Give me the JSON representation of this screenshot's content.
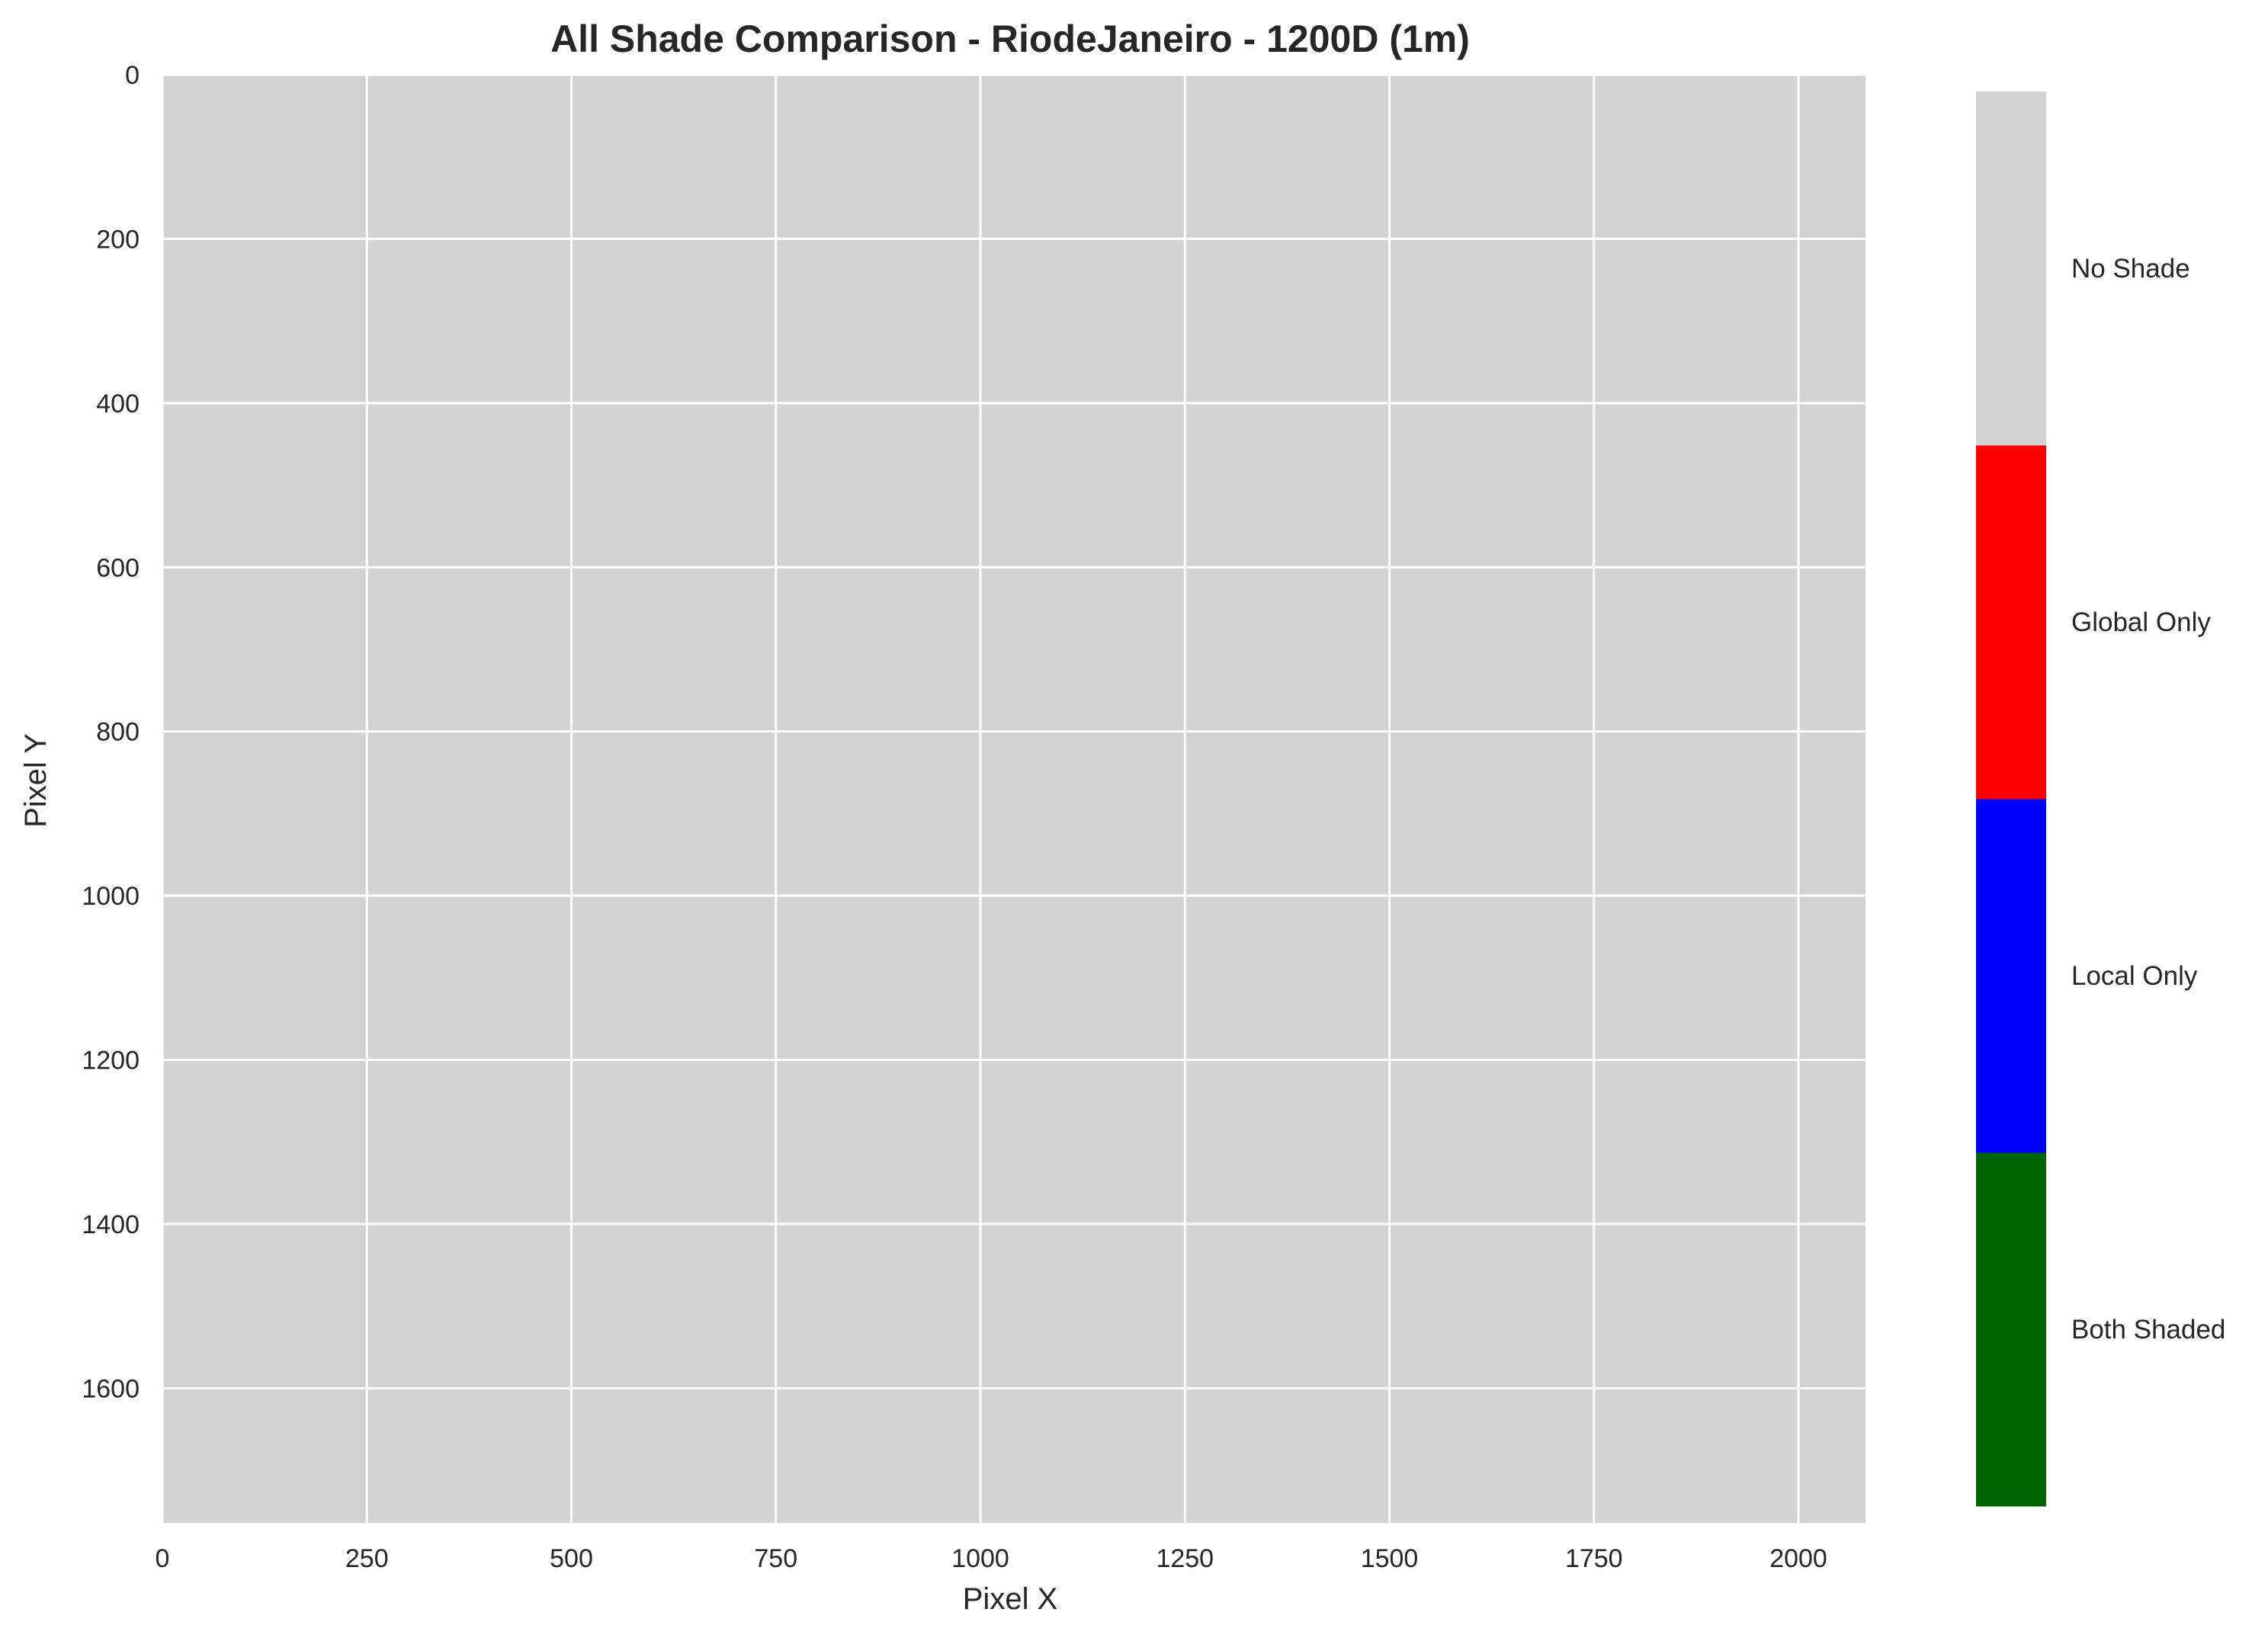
{
  "chart_data": {
    "type": "heatmap",
    "title": "All Shade Comparison - RiodeJaneiro - 1200D (1m)",
    "xlabel": "Pixel X",
    "ylabel": "Pixel Y",
    "xlim": [
      0,
      2082
    ],
    "ylim": [
      1764,
      0
    ],
    "y_inverted": true,
    "grid": true,
    "x_ticks": [
      0,
      250,
      500,
      750,
      1000,
      1250,
      1500,
      1750,
      2000
    ],
    "y_ticks": [
      0,
      200,
      400,
      600,
      800,
      1000,
      1200,
      1400,
      1600
    ],
    "x_tick_labels": [
      "0",
      "250",
      "500",
      "750",
      "1000",
      "1250",
      "1500",
      "1750",
      "2000"
    ],
    "y_tick_labels": [
      "0",
      "200",
      "400",
      "600",
      "800",
      "1000",
      "1200",
      "1400",
      "1600"
    ],
    "fill_category": "No Shade",
    "categories": [
      {
        "label": "Both Shaded",
        "color": "#006400",
        "value": 0
      },
      {
        "label": "Local Only",
        "color": "#0000ff",
        "value": 1
      },
      {
        "label": "Global Only",
        "color": "#ff0000",
        "value": 2
      },
      {
        "label": "No Shade",
        "color": "#d3d3d3",
        "value": 3
      }
    ],
    "legend": "right colorbar"
  }
}
